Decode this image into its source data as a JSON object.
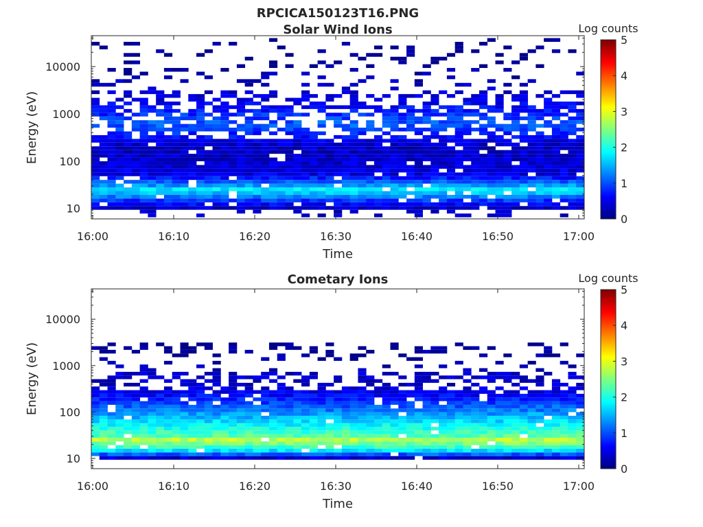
{
  "figure": {
    "title": "RPCICA150123T16.PNG"
  },
  "colors": {
    "colormap": "jet",
    "background": "#ffffff",
    "axes": "#262626"
  },
  "chart_data": [
    {
      "type": "heatmap",
      "title": "Solar Wind Ions",
      "xlabel": "Time",
      "ylabel": "Energy (eV)",
      "y_scale": "log",
      "ylim": [
        6,
        45000
      ],
      "x_ticks": [
        "16:00",
        "16:10",
        "16:20",
        "16:30",
        "16:40",
        "16:50",
        "17:00"
      ],
      "y_ticks": [
        "10",
        "100",
        "1000",
        "10000"
      ],
      "colorbar": {
        "label": "Log counts",
        "range": [
          0,
          5
        ],
        "ticks": [
          "0",
          "1",
          "2",
          "3",
          "4",
          "5"
        ]
      },
      "energy_profile_log_counts": [
        {
          "energy_ev": 10,
          "level": 0.3
        },
        {
          "energy_ev": 15,
          "level": 0.9
        },
        {
          "energy_ev": 20,
          "level": 1.5
        },
        {
          "energy_ev": 25,
          "level": 1.8
        },
        {
          "energy_ev": 30,
          "level": 1.4
        },
        {
          "energy_ev": 50,
          "level": 0.5
        },
        {
          "energy_ev": 100,
          "level": 0.4
        },
        {
          "energy_ev": 200,
          "level": 0.3
        },
        {
          "energy_ev": 400,
          "level": 0.8
        },
        {
          "energy_ev": 600,
          "level": 1.1
        },
        {
          "energy_ev": 1200,
          "level": 0.7
        },
        {
          "energy_ev": 2500,
          "level": 0.4
        },
        {
          "energy_ev": 10000,
          "level": 0.1
        }
      ]
    },
    {
      "type": "heatmap",
      "title": "Cometary Ions",
      "xlabel": "Time",
      "ylabel": "Energy (eV)",
      "y_scale": "log",
      "ylim": [
        6,
        45000
      ],
      "x_ticks": [
        "16:00",
        "16:10",
        "16:20",
        "16:30",
        "16:40",
        "16:50",
        "17:00"
      ],
      "y_ticks": [
        "10",
        "100",
        "1000",
        "10000"
      ],
      "colorbar": {
        "label": "Log counts",
        "range": [
          0,
          5
        ],
        "ticks": [
          "0",
          "1",
          "2",
          "3",
          "4",
          "5"
        ]
      },
      "energy_profile_log_counts": [
        {
          "energy_ev": 10,
          "level": 0.3
        },
        {
          "energy_ev": 15,
          "level": 1.8
        },
        {
          "energy_ev": 20,
          "level": 2.4
        },
        {
          "energy_ev": 25,
          "level": 2.8
        },
        {
          "energy_ev": 30,
          "level": 2.3
        },
        {
          "energy_ev": 50,
          "level": 1.9
        },
        {
          "energy_ev": 100,
          "level": 1.3
        },
        {
          "energy_ev": 200,
          "level": 0.7
        },
        {
          "energy_ev": 400,
          "level": 0.3
        },
        {
          "energy_ev": 600,
          "level": 0.4
        },
        {
          "energy_ev": 1200,
          "level": 0.1
        },
        {
          "energy_ev": 2500,
          "level": 0.1
        }
      ]
    }
  ]
}
